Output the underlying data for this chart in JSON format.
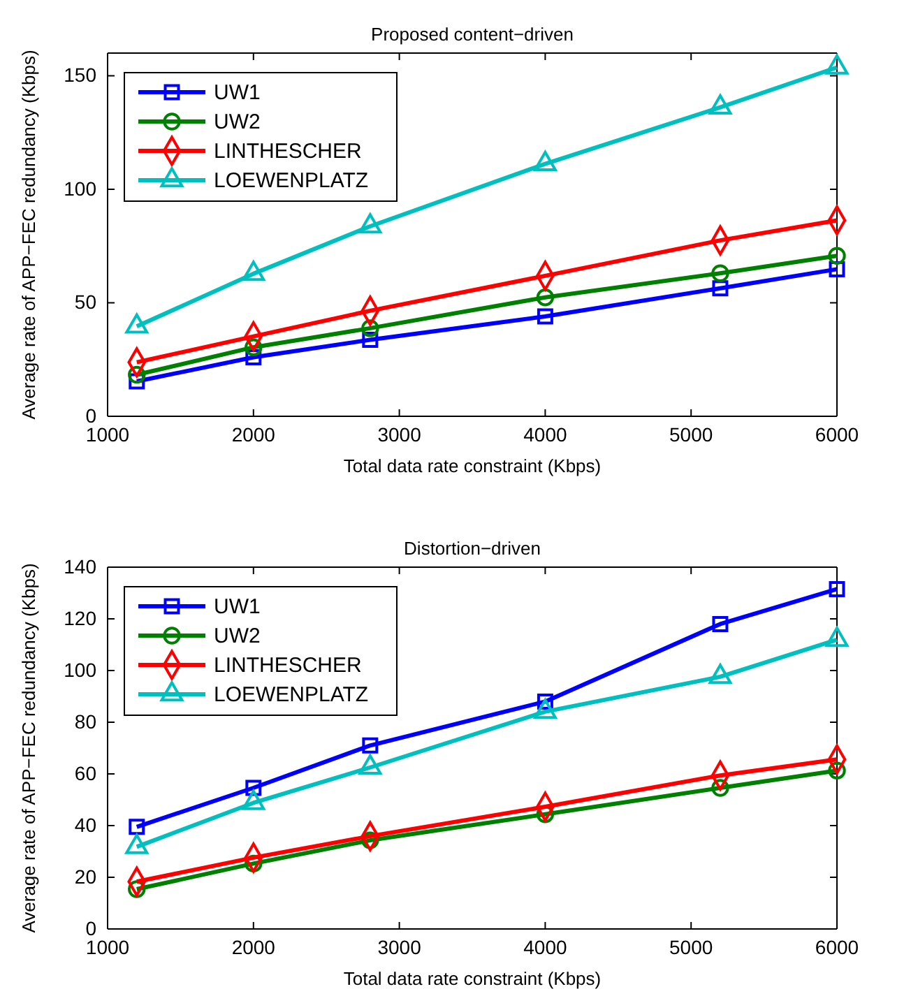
{
  "chart_data": [
    {
      "type": "line",
      "title": "Proposed content−driven",
      "xlabel": "Total data rate constraint (Kbps)",
      "ylabel": "Average rate of APP−FEC redundancy (Kbps)",
      "x": [
        1200,
        2000,
        2800,
        4000,
        5200,
        6000
      ],
      "xlim": [
        1000,
        6000
      ],
      "xticks": [
        1000,
        2000,
        3000,
        4000,
        5000,
        6000
      ],
      "ylim": [
        0,
        160
      ],
      "yticks": [
        0,
        50,
        100,
        150
      ],
      "legend": "top left",
      "grid": false,
      "series": [
        {
          "name": "UW1",
          "color": "#0000ff",
          "marker": "square",
          "values": [
            15.4,
            26,
            33.7,
            44,
            56.4,
            64.8
          ]
        },
        {
          "name": "UW2",
          "color": "#008000",
          "marker": "circle",
          "values": [
            18.3,
            30.4,
            38.8,
            52.4,
            63,
            70.7
          ]
        },
        {
          "name": "LINTHESCHER",
          "color": "#ff0000",
          "marker": "diamond",
          "values": [
            23.8,
            35.2,
            46.5,
            61.9,
            77.5,
            86.3
          ]
        },
        {
          "name": "LOEWENPLATZ",
          "color": "#00bfbf",
          "marker": "triangle",
          "values": [
            39.6,
            62.8,
            83.7,
            111.2,
            136.1,
            153.7
          ]
        }
      ]
    },
    {
      "type": "line",
      "title": "Distortion−driven",
      "xlabel": "Total data rate constraint (Kbps)",
      "ylabel": "Average rate of APP−FEC redundancy (Kbps)",
      "x": [
        1200,
        2000,
        2800,
        4000,
        5200,
        6000
      ],
      "xlim": [
        1000,
        6000
      ],
      "xticks": [
        1000,
        2000,
        3000,
        4000,
        5000,
        6000
      ],
      "ylim": [
        0,
        140
      ],
      "yticks": [
        0,
        20,
        40,
        60,
        80,
        100,
        120,
        140
      ],
      "legend": "top left",
      "grid": false,
      "series": [
        {
          "name": "UW1",
          "color": "#0000ff",
          "marker": "square",
          "values": [
            39.5,
            54.6,
            71,
            88,
            118,
            131.5
          ]
        },
        {
          "name": "UW2",
          "color": "#008000",
          "marker": "circle",
          "values": [
            15.4,
            25.3,
            34.3,
            44.4,
            54.6,
            61.3
          ]
        },
        {
          "name": "LINTHESCHER",
          "color": "#ff0000",
          "marker": "diamond",
          "values": [
            18.3,
            27.6,
            35.9,
            47.3,
            59.4,
            65.6
          ]
        },
        {
          "name": "LOEWENPLATZ",
          "color": "#00bfbf",
          "marker": "triangle",
          "values": [
            31.8,
            48.8,
            62.5,
            84.1,
            97.6,
            111.9
          ]
        }
      ]
    }
  ]
}
